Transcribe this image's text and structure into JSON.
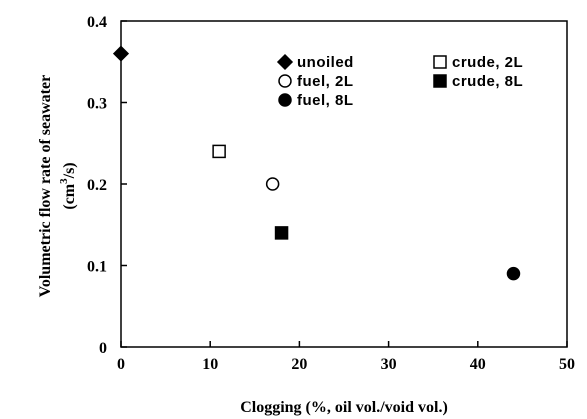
{
  "chart_data": {
    "type": "scatter",
    "title": "",
    "xlabel": "Clogging (%, oil vol./void vol.)",
    "ylabel_line1": "Volumetric flow rate of seawater",
    "ylabel_line2_prefix": "(cm",
    "ylabel_line2_sup": "3",
    "ylabel_line2_suffix": "/s)",
    "xlim": [
      0,
      50
    ],
    "ylim": [
      0,
      0.4
    ],
    "x_ticks": [
      0,
      10,
      20,
      30,
      40,
      50
    ],
    "x_tick_labels": [
      "0",
      "10",
      "20",
      "30",
      "40",
      "50"
    ],
    "y_ticks": [
      0,
      0.1,
      0.2,
      0.3,
      0.4
    ],
    "y_tick_labels": [
      "0",
      "0.1",
      "0.2",
      "0.3",
      "0.4"
    ],
    "grid": false,
    "legend_position": "top-right",
    "series": [
      {
        "name": "unoiled",
        "marker": "diamond",
        "fill": "#000000",
        "points": [
          {
            "x": 0,
            "y": 0.36
          }
        ]
      },
      {
        "name": "crude, 2L",
        "marker": "square",
        "fill": "#ffffff",
        "points": [
          {
            "x": 11,
            "y": 0.24
          }
        ]
      },
      {
        "name": "fuel, 2L",
        "marker": "circle",
        "fill": "#ffffff",
        "points": [
          {
            "x": 17,
            "y": 0.2
          }
        ]
      },
      {
        "name": "crude, 8L",
        "marker": "square",
        "fill": "#000000",
        "points": [
          {
            "x": 18,
            "y": 0.14
          }
        ]
      },
      {
        "name": "fuel, 8L",
        "marker": "circle",
        "fill": "#000000",
        "points": [
          {
            "x": 44,
            "y": 0.09
          }
        ]
      }
    ]
  }
}
